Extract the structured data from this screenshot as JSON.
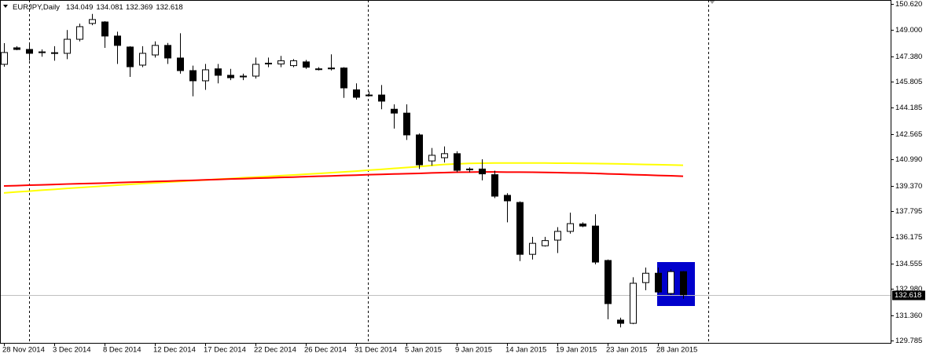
{
  "chart_data": {
    "type": "candlestick",
    "symbol": "EURJPY,Daily",
    "categories": [
      "28 Nov 2014",
      null,
      null,
      null,
      "3 Dec 2014",
      null,
      null,
      null,
      "8 Dec 2014",
      null,
      null,
      null,
      "12 Dec 2014",
      null,
      null,
      null,
      "17 Dec 2014",
      null,
      null,
      null,
      "22 Dec 2014",
      null,
      null,
      null,
      "26 Dec 2014",
      null,
      null,
      null,
      "31 Dec 2014",
      null,
      null,
      null,
      "5 Jan 2015",
      null,
      null,
      null,
      "9 Jan 2015",
      null,
      null,
      null,
      "14 Jan 2015",
      null,
      null,
      null,
      "19 Jan 2015",
      null,
      null,
      null,
      "23 Jan 2015",
      null,
      null,
      null,
      "28 Jan 2015",
      null,
      null
    ],
    "open": [
      146.88,
      147.9,
      147.8,
      147.6,
      147.55,
      147.56,
      148.43,
      149.41,
      149.5,
      148.63,
      147.95,
      146.83,
      147.46,
      148.05,
      147.27,
      146.49,
      145.86,
      146.6,
      146.2,
      146.1,
      146.15,
      146.9,
      146.9,
      146.8,
      147.03,
      146.6,
      146.6,
      146.65,
      145.3,
      144.98,
      144.98,
      144.1,
      143.86,
      142.51,
      140.9,
      141.1,
      141.35,
      140.37,
      140.4,
      140.05,
      138.77,
      138.33,
      135.12,
      135.65,
      136.0,
      136.54,
      137.0,
      136.87,
      134.74,
      131.05,
      130.85,
      133.37,
      133.95,
      132.7,
      134.049
    ],
    "high": [
      148.19,
      148.0,
      148.2,
      147.8,
      148.0,
      149.0,
      149.4,
      150.0,
      149.55,
      148.9,
      148.0,
      148.0,
      148.3,
      148.2,
      148.8,
      146.8,
      146.9,
      146.9,
      146.6,
      146.3,
      147.3,
      147.3,
      147.4,
      147.2,
      147.15,
      146.7,
      147.5,
      146.7,
      145.7,
      145.2,
      145.6,
      144.4,
      144.4,
      142.6,
      141.7,
      141.8,
      141.5,
      140.5,
      141.0,
      140.3,
      138.9,
      138.4,
      136.2,
      136.2,
      136.8,
      137.7,
      137.1,
      137.6,
      134.8,
      131.2,
      133.7,
      134.3,
      134.3,
      134.2,
      134.081
    ],
    "low": [
      146.73,
      147.75,
      147.1,
      147.35,
      147.1,
      147.2,
      148.3,
      149.3,
      147.9,
      146.9,
      146.1,
      146.7,
      147.3,
      146.9,
      146.3,
      144.9,
      145.3,
      145.7,
      145.9,
      145.9,
      146.0,
      146.7,
      146.7,
      146.7,
      146.6,
      146.5,
      146.5,
      144.8,
      144.7,
      144.9,
      144.1,
      142.9,
      142.2,
      140.4,
      140.6,
      140.8,
      140.2,
      140.2,
      139.7,
      138.6,
      137.1,
      134.7,
      134.8,
      135.6,
      135.2,
      136.4,
      136.8,
      134.5,
      131.1,
      130.6,
      130.8,
      132.9,
      132.7,
      132.6,
      132.369
    ],
    "close": [
      147.61,
      147.8,
      147.56,
      147.65,
      147.6,
      148.43,
      149.21,
      149.65,
      148.63,
      148.05,
      146.73,
      147.56,
      148.05,
      147.27,
      146.49,
      145.86,
      146.54,
      146.2,
      146.05,
      146.15,
      146.88,
      146.95,
      147.1,
      147.1,
      146.7,
      146.6,
      146.65,
      145.42,
      144.84,
      144.98,
      144.6,
      143.86,
      142.51,
      140.66,
      141.25,
      141.35,
      140.32,
      140.4,
      140.1,
      138.72,
      138.43,
      135.12,
      135.8,
      135.97,
      136.54,
      137.02,
      136.87,
      134.64,
      132.07,
      130.85,
      133.33,
      133.95,
      132.79,
      134.05,
      132.618
    ],
    "lines": [
      {
        "color": "#ffff00",
        "values": [
          138.92,
          138.98,
          139.03,
          139.09,
          139.14,
          139.2,
          139.25,
          139.3,
          139.35,
          139.4,
          139.45,
          139.5,
          139.54,
          139.59,
          139.63,
          139.68,
          139.72,
          139.77,
          139.81,
          139.86,
          139.9,
          139.94,
          139.99,
          140.03,
          140.08,
          140.12,
          140.17,
          140.22,
          140.27,
          140.33,
          140.38,
          140.44,
          140.49,
          140.55,
          140.62,
          140.68,
          140.72,
          140.75,
          140.76,
          140.77,
          140.77,
          140.77,
          140.77,
          140.77,
          140.76,
          140.76,
          140.75,
          140.74,
          140.73,
          140.72,
          140.7,
          140.68,
          140.67,
          140.65,
          140.63
        ]
      },
      {
        "color": "#ff0000",
        "values": [
          139.35,
          139.37,
          139.4,
          139.42,
          139.44,
          139.47,
          139.49,
          139.51,
          139.53,
          139.56,
          139.58,
          139.6,
          139.63,
          139.65,
          139.68,
          139.7,
          139.73,
          139.75,
          139.78,
          139.8,
          139.83,
          139.85,
          139.88,
          139.9,
          139.93,
          139.95,
          139.97,
          140.0,
          140.02,
          140.05,
          140.07,
          140.09,
          140.11,
          140.13,
          140.16,
          140.18,
          140.2,
          140.21,
          140.22,
          140.22,
          140.21,
          140.21,
          140.2,
          140.19,
          140.18,
          140.16,
          140.15,
          140.13,
          140.1,
          140.08,
          140.05,
          140.03,
          140.0,
          139.98,
          139.95
        ]
      }
    ],
    "ylim": [
      129.64,
      150.86
    ],
    "yticks": [
      {
        "value": 150.62,
        "label": "150.620"
      },
      {
        "value": 149,
        "label": "149.000"
      },
      {
        "value": 147.38,
        "label": "147.380"
      },
      145.805,
      144.185,
      142.565,
      {
        "value": 140.99,
        "label": "140.990"
      },
      {
        "value": 139.37,
        "label": "139.370"
      },
      137.795,
      136.175,
      134.555,
      {
        "value": 132.98,
        "label": "132.980"
      },
      {
        "value": 131.36,
        "label": "131.360"
      },
      129.785
    ]
  }
}
